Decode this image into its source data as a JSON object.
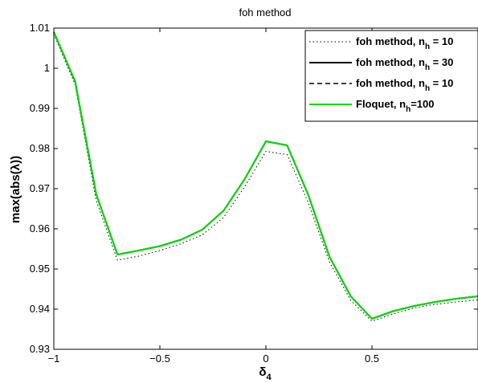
{
  "chart_data": {
    "type": "line",
    "title": "foh method",
    "xlabel_main": "δ",
    "xlabel_sub": "4",
    "ylabel": "max(abs(λ))",
    "xlim": [
      -1,
      1
    ],
    "ylim": [
      0.93,
      1.01
    ],
    "grid": false,
    "legend_position": "top-right",
    "x_ticks": [
      -1,
      -0.5,
      0,
      0.5
    ],
    "x_tick_labels": [
      "−1",
      "−0.5",
      "0",
      "0.5"
    ],
    "y_ticks": [
      0.93,
      0.94,
      0.95,
      0.96,
      0.97,
      0.98,
      0.99,
      1,
      1.01
    ],
    "y_tick_labels": [
      "0.93",
      "0.94",
      "0.95",
      "0.96",
      "0.97",
      "0.98",
      "0.99",
      "1",
      "1.01"
    ],
    "x": [
      -1,
      -0.9,
      -0.8,
      -0.7,
      -0.6,
      -0.5,
      -0.4,
      -0.3,
      -0.2,
      -0.1,
      0,
      0.1,
      0.2,
      0.3,
      0.4,
      0.5,
      0.6,
      0.7,
      0.8,
      0.9,
      1
    ],
    "series": [
      {
        "legend_main": "foh method, n",
        "legend_sub": "h",
        "legend_tail": " = 10",
        "color": "#000000",
        "style": "dotted",
        "width": 1,
        "values": [
          1.0085,
          0.996,
          0.967,
          0.9522,
          0.9532,
          0.9546,
          0.9563,
          0.9585,
          0.9628,
          0.9705,
          0.9793,
          0.9785,
          0.9665,
          0.9517,
          0.9422,
          0.937,
          0.9388,
          0.9403,
          0.9412,
          0.9418,
          0.9423
        ]
      },
      {
        "legend_main": "foh method, n",
        "legend_sub": "h",
        "legend_tail": " = 30",
        "color": "#000000",
        "style": "solid",
        "width": 2,
        "values": [
          1.009,
          0.9968,
          0.9686,
          0.9536,
          0.9546,
          0.9557,
          0.9573,
          0.9598,
          0.9645,
          0.9724,
          0.9818,
          0.9808,
          0.9684,
          0.953,
          0.9432,
          0.9376,
          0.9395,
          0.9408,
          0.9418,
          0.9426,
          0.9432
        ]
      },
      {
        "legend_main": "foh method, n",
        "legend_sub": "h",
        "legend_tail": " = 10",
        "color": "#000000",
        "style": "dashed",
        "width": 1.5,
        "values": [
          1.009,
          0.9968,
          0.9686,
          0.9536,
          0.9546,
          0.9557,
          0.9573,
          0.9598,
          0.9645,
          0.9724,
          0.9818,
          0.9808,
          0.9684,
          0.953,
          0.9432,
          0.9376,
          0.9395,
          0.9408,
          0.9418,
          0.9426,
          0.9432
        ]
      },
      {
        "legend_main": "Floquet,  n",
        "legend_sub": "h",
        "legend_tail": "=100",
        "color": "#00dd00",
        "style": "solid",
        "width": 2,
        "values": [
          1.009,
          0.9968,
          0.9686,
          0.9536,
          0.9546,
          0.9557,
          0.9573,
          0.9598,
          0.9645,
          0.9724,
          0.9818,
          0.9808,
          0.9684,
          0.953,
          0.9432,
          0.9376,
          0.9395,
          0.9408,
          0.9418,
          0.9426,
          0.9432
        ]
      }
    ]
  }
}
